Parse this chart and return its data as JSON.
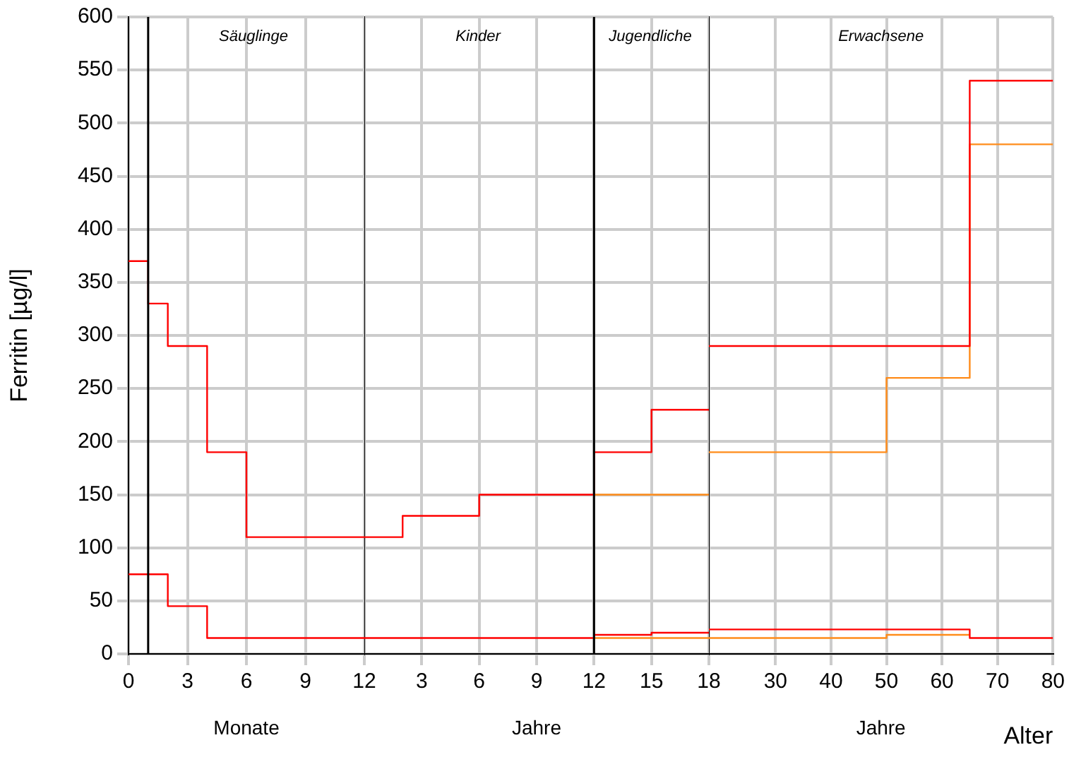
{
  "chart_data": [
    {
      "type": "step",
      "ylabel": "Ferritin [µg/l]",
      "xlim": [
        0,
        12
      ],
      "xticks": [
        0,
        3,
        6,
        9,
        12
      ],
      "ylim": [
        0,
        600
      ],
      "yticks": [
        0,
        50,
        100,
        150,
        200,
        250,
        300,
        350,
        400,
        450,
        500,
        550,
        600
      ],
      "series": [
        {
          "color": "#ff0000",
          "x": [
            0,
            1,
            2,
            4,
            6,
            12
          ],
          "values": [
            370,
            330,
            290,
            190,
            110,
            110
          ]
        },
        {
          "color": "#ff0000",
          "x": [
            0,
            2,
            4,
            12
          ],
          "values": [
            75,
            45,
            15,
            15
          ]
        }
      ],
      "ref_lines": [
        {
          "axis": "x",
          "value": 1,
          "color": "#000000"
        }
      ],
      "annotations": [
        "Säuglinge",
        "Monate"
      ],
      "grid": true,
      "legend": false
    },
    {
      "type": "step",
      "xlim": [
        0,
        18
      ],
      "xticks": [
        3,
        6,
        9,
        12,
        15,
        18
      ],
      "ylim": [
        0,
        600
      ],
      "yticks": [
        0,
        50,
        100,
        150,
        200,
        250,
        300,
        350,
        400,
        450,
        500,
        550,
        600
      ],
      "tick_labels": "x",
      "series": [
        {
          "color": "#ff0000",
          "x": [
            0,
            2,
            6,
            12,
            15,
            18
          ],
          "values": [
            110,
            130,
            150,
            190,
            230,
            230
          ]
        },
        {
          "color": "#ff8c1a",
          "x": [
            12,
            18
          ],
          "values": [
            150,
            150
          ]
        },
        {
          "color": "#ff0000",
          "x": [
            0,
            12,
            15,
            18
          ],
          "values": [
            15,
            18,
            20,
            20
          ]
        },
        {
          "color": "#ff8c1a",
          "x": [
            12,
            18
          ],
          "values": [
            15,
            15
          ]
        }
      ],
      "ref_lines": [
        {
          "axis": "x",
          "value": 12,
          "color": "#000000"
        }
      ],
      "annotations": [
        "Kinder",
        "Jugendliche",
        "Jahre"
      ],
      "grid": true,
      "legend": false
    },
    {
      "type": "step",
      "xlabel": "Alter",
      "xlim": [
        18,
        80
      ],
      "xticks": [
        30,
        40,
        50,
        60,
        70,
        80
      ],
      "ylim": [
        0,
        600
      ],
      "yticks": [
        0,
        50,
        100,
        150,
        200,
        250,
        300,
        350,
        400,
        450,
        500,
        550,
        600
      ],
      "tick_labels": "x",
      "series": [
        {
          "color": "#ff0000",
          "x": [
            18,
            65,
            80
          ],
          "values": [
            290,
            540,
            540
          ]
        },
        {
          "color": "#ff8c1a",
          "x": [
            18,
            50,
            65,
            80
          ],
          "values": [
            190,
            260,
            480,
            480
          ]
        },
        {
          "color": "#ff0000",
          "x": [
            18,
            65,
            80
          ],
          "values": [
            23,
            15,
            15
          ]
        },
        {
          "color": "#ff8c1a",
          "x": [
            18,
            50,
            65
          ],
          "values": [
            15,
            18,
            18
          ]
        }
      ],
      "annotations": [
        "Erwachsene",
        "Jahre"
      ],
      "grid": true,
      "legend": false
    }
  ]
}
